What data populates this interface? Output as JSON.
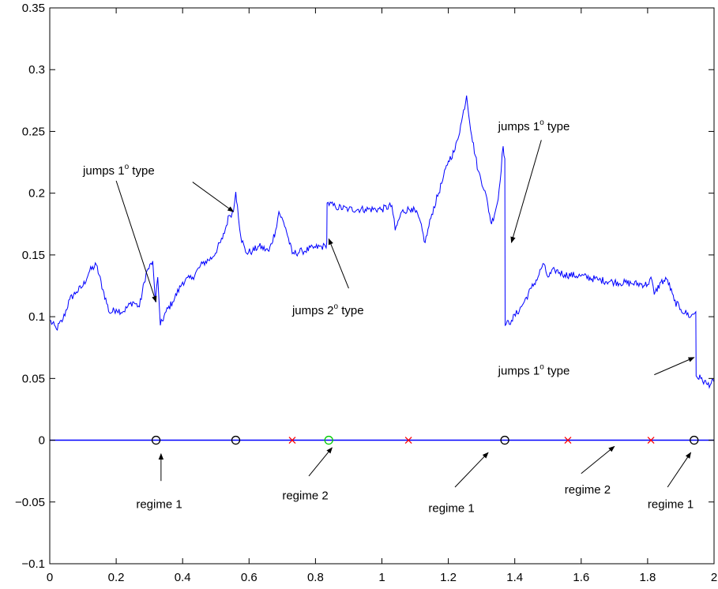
{
  "chart_data": {
    "type": "line",
    "title": "",
    "xlabel": "",
    "ylabel": "",
    "xlim": [
      0,
      2
    ],
    "ylim": [
      -0.1,
      0.35
    ],
    "grid": false,
    "x_ticks": [
      "0",
      "0.2",
      "0.4",
      "0.6",
      "0.8",
      "1",
      "1.2",
      "1.4",
      "1.6",
      "1.8",
      "2"
    ],
    "y_ticks": [
      "−0.1",
      "−0.05",
      "0",
      "0.05",
      "0.1",
      "0.15",
      "0.2",
      "0.25",
      "0.3",
      "0.35"
    ],
    "colors": {
      "series": "#0000ff",
      "baseline": "#0000ff",
      "regime1_marker": "#000000",
      "regime2_marker": "#00cc00",
      "cross_marker": "#ff0000",
      "axes": "#000000"
    },
    "series": [
      {
        "values": [
          [
            0.0,
            0.097
          ],
          [
            0.02,
            0.09
          ],
          [
            0.04,
            0.098
          ],
          [
            0.06,
            0.114
          ],
          [
            0.08,
            0.12
          ],
          [
            0.1,
            0.125
          ],
          [
            0.12,
            0.137
          ],
          [
            0.14,
            0.142
          ],
          [
            0.16,
            0.122
          ],
          [
            0.18,
            0.103
          ],
          [
            0.2,
            0.106
          ],
          [
            0.22,
            0.104
          ],
          [
            0.25,
            0.112
          ],
          [
            0.27,
            0.108
          ],
          [
            0.29,
            0.135
          ],
          [
            0.31,
            0.145
          ],
          [
            0.318,
            0.112
          ],
          [
            0.325,
            0.132
          ],
          [
            0.333,
            0.093
          ],
          [
            0.35,
            0.104
          ],
          [
            0.37,
            0.112
          ],
          [
            0.4,
            0.128
          ],
          [
            0.43,
            0.132
          ],
          [
            0.46,
            0.143
          ],
          [
            0.49,
            0.148
          ],
          [
            0.52,
            0.163
          ],
          [
            0.54,
            0.182
          ],
          [
            0.553,
            0.185
          ],
          [
            0.56,
            0.201
          ],
          [
            0.565,
            0.19
          ],
          [
            0.575,
            0.165
          ],
          [
            0.59,
            0.152
          ],
          [
            0.61,
            0.153
          ],
          [
            0.63,
            0.157
          ],
          [
            0.66,
            0.153
          ],
          [
            0.68,
            0.17
          ],
          [
            0.69,
            0.185
          ],
          [
            0.71,
            0.172
          ],
          [
            0.73,
            0.151
          ],
          [
            0.76,
            0.153
          ],
          [
            0.8,
            0.156
          ],
          [
            0.83,
            0.157
          ],
          [
            0.834,
            0.16
          ],
          [
            0.835,
            0.192
          ],
          [
            0.86,
            0.189
          ],
          [
            0.9,
            0.187
          ],
          [
            0.95,
            0.187
          ],
          [
            1.0,
            0.187
          ],
          [
            1.03,
            0.19
          ],
          [
            1.04,
            0.17
          ],
          [
            1.06,
            0.185
          ],
          [
            1.09,
            0.188
          ],
          [
            1.11,
            0.181
          ],
          [
            1.13,
            0.16
          ],
          [
            1.15,
            0.183
          ],
          [
            1.18,
            0.208
          ],
          [
            1.2,
            0.226
          ],
          [
            1.22,
            0.235
          ],
          [
            1.24,
            0.258
          ],
          [
            1.255,
            0.279
          ],
          [
            1.27,
            0.247
          ],
          [
            1.29,
            0.218
          ],
          [
            1.31,
            0.202
          ],
          [
            1.33,
            0.175
          ],
          [
            1.35,
            0.195
          ],
          [
            1.365,
            0.238
          ],
          [
            1.37,
            0.228
          ],
          [
            1.371,
            0.093
          ],
          [
            1.39,
            0.097
          ],
          [
            1.42,
            0.108
          ],
          [
            1.45,
            0.123
          ],
          [
            1.47,
            0.132
          ],
          [
            1.485,
            0.143
          ],
          [
            1.5,
            0.132
          ],
          [
            1.52,
            0.138
          ],
          [
            1.55,
            0.134
          ],
          [
            1.6,
            0.133
          ],
          [
            1.65,
            0.13
          ],
          [
            1.7,
            0.128
          ],
          [
            1.75,
            0.127
          ],
          [
            1.8,
            0.126
          ],
          [
            1.81,
            0.132
          ],
          [
            1.82,
            0.118
          ],
          [
            1.84,
            0.128
          ],
          [
            1.86,
            0.13
          ],
          [
            1.88,
            0.113
          ],
          [
            1.9,
            0.106
          ],
          [
            1.93,
            0.1
          ],
          [
            1.945,
            0.104
          ],
          [
            1.946,
            0.052
          ],
          [
            1.96,
            0.05
          ],
          [
            1.98,
            0.045
          ],
          [
            2.0,
            0.047
          ]
        ]
      }
    ],
    "baseline_y": 0,
    "markers": [
      {
        "x": 0.32,
        "y": 0,
        "shape": "circle",
        "color": "#000000"
      },
      {
        "x": 0.56,
        "y": 0,
        "shape": "circle",
        "color": "#000000"
      },
      {
        "x": 0.73,
        "y": 0,
        "shape": "x",
        "color": "#ff0000"
      },
      {
        "x": 0.84,
        "y": 0,
        "shape": "circle",
        "color": "#00cc00"
      },
      {
        "x": 1.08,
        "y": 0,
        "shape": "x",
        "color": "#ff0000"
      },
      {
        "x": 1.37,
        "y": 0,
        "shape": "circle",
        "color": "#000000"
      },
      {
        "x": 1.56,
        "y": 0,
        "shape": "x",
        "color": "#ff0000"
      },
      {
        "x": 1.81,
        "y": 0,
        "shape": "x",
        "color": "#ff0000"
      },
      {
        "x": 1.94,
        "y": 0,
        "shape": "circle",
        "color": "#000000"
      }
    ],
    "annotations": [
      {
        "text": "jumps 1",
        "sup": "o",
        "suffix": " type",
        "x": 0.1,
        "y": 0.215,
        "arrow_from": [
          0.2,
          0.21
        ],
        "arrow_to": [
          0.32,
          0.112
        ]
      },
      {
        "text": "jumps 1",
        "sup": "o",
        "suffix": " type",
        "x": 0.1,
        "y": 0.215,
        "arrow_from": [
          0.43,
          0.209
        ],
        "arrow_to": [
          0.553,
          0.185
        ]
      },
      {
        "text": "jumps 2",
        "sup": "o",
        "suffix": " type",
        "x": 0.73,
        "y": 0.102,
        "arrow_from": [
          0.9,
          0.123
        ],
        "arrow_to": [
          0.84,
          0.163
        ]
      },
      {
        "text": "jumps 1",
        "sup": "o",
        "suffix": " type",
        "x": 1.35,
        "y": 0.251,
        "arrow_from": [
          1.48,
          0.243
        ],
        "arrow_to": [
          1.39,
          0.16
        ]
      },
      {
        "text": "jumps 1",
        "sup": "o",
        "suffix": " type",
        "x": 1.35,
        "y": 0.053,
        "arrow_from": [
          1.82,
          0.053
        ],
        "arrow_to": [
          1.94,
          0.067
        ]
      },
      {
        "text": "regime 1",
        "sup": "",
        "suffix": "",
        "x": 0.26,
        "y": -0.055,
        "arrow_from": [
          0.335,
          -0.033
        ],
        "arrow_to": [
          0.335,
          -0.011
        ]
      },
      {
        "text": "regime 2",
        "sup": "",
        "suffix": "",
        "x": 0.7,
        "y": -0.048,
        "arrow_from": [
          0.78,
          -0.029
        ],
        "arrow_to": [
          0.85,
          -0.006
        ]
      },
      {
        "text": "regime 1",
        "sup": "",
        "suffix": "",
        "x": 1.14,
        "y": -0.058,
        "arrow_from": [
          1.22,
          -0.038
        ],
        "arrow_to": [
          1.32,
          -0.01
        ]
      },
      {
        "text": "regime 2",
        "sup": "",
        "suffix": "",
        "x": 1.55,
        "y": -0.043,
        "arrow_from": [
          1.6,
          -0.027
        ],
        "arrow_to": [
          1.7,
          -0.005
        ]
      },
      {
        "text": "regime 1",
        "sup": "",
        "suffix": "",
        "x": 1.8,
        "y": -0.055,
        "arrow_from": [
          1.86,
          -0.038
        ],
        "arrow_to": [
          1.93,
          -0.01
        ]
      }
    ]
  }
}
